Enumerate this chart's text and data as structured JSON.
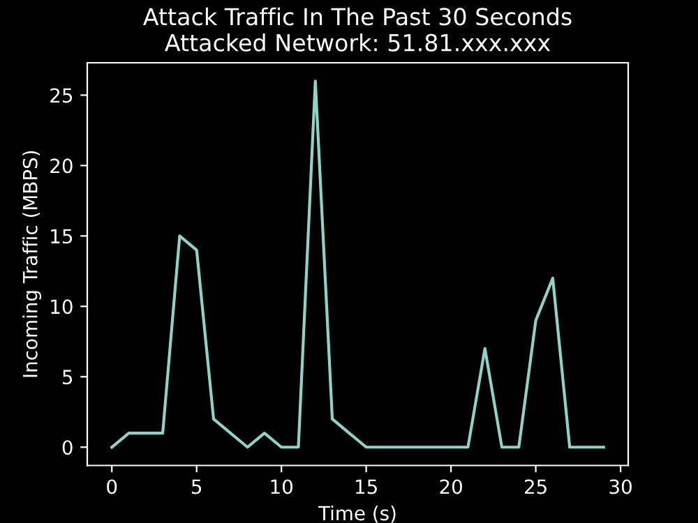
{
  "chart_data": {
    "type": "line",
    "title": "Attack Traffic In The Past 30 Seconds\nAttacked Network: 51.81.xxx.xxx",
    "xlabel": "Time (s)",
    "ylabel": "Incoming Traffic (MBPS)",
    "x": [
      0,
      1,
      2,
      3,
      4,
      5,
      6,
      7,
      8,
      9,
      10,
      11,
      12,
      13,
      14,
      15,
      16,
      17,
      18,
      19,
      20,
      21,
      22,
      23,
      24,
      25,
      26,
      27,
      28,
      29
    ],
    "series": [
      {
        "color": "#8dd3c7",
        "values": [
          0,
          1,
          1,
          1,
          15,
          14,
          2,
          1,
          0,
          1,
          0,
          0,
          26,
          2,
          1,
          0,
          0,
          0,
          0,
          0,
          0,
          0,
          7,
          0,
          0,
          9,
          12,
          0,
          0,
          0
        ]
      }
    ],
    "xlim": [
      -1.45,
      30.45
    ],
    "ylim": [
      -1.3,
      27.3
    ],
    "xticks": [
      0,
      5,
      10,
      15,
      20,
      25,
      30
    ],
    "yticks": [
      0,
      5,
      10,
      15,
      20,
      25
    ],
    "grid": false,
    "legend": false,
    "marker": "none",
    "line_style": "solid"
  }
}
